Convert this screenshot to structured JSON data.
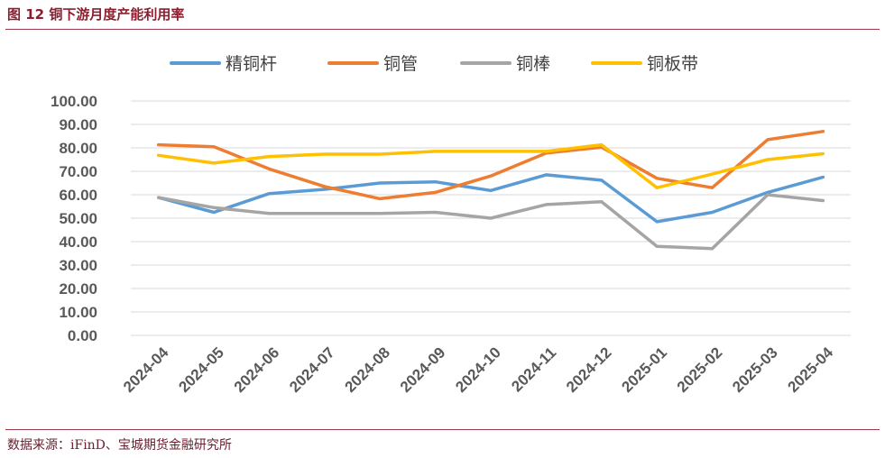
{
  "figure": {
    "title": "图 12 铜下游月度产能利用率",
    "source": "数据来源：iFinD、宝城期货金融研究所"
  },
  "chart_data": {
    "type": "line",
    "categories": [
      "2024-04",
      "2024-05",
      "2024-06",
      "2024-07",
      "2024-08",
      "2024-09",
      "2024-10",
      "2024-11",
      "2024-12",
      "2025-01",
      "2025-02",
      "2025-03",
      "2025-04"
    ],
    "ylim": [
      0,
      100
    ],
    "yticks": [
      "0.00",
      "10.00",
      "20.00",
      "30.00",
      "40.00",
      "50.00",
      "60.00",
      "70.00",
      "80.00",
      "90.00",
      "100.00"
    ],
    "grid": true,
    "legend_position": "top",
    "series": [
      {
        "name": "精铜杆",
        "color": "#5b9bd5",
        "values": [
          58.8,
          52.5,
          60.5,
          62.3,
          65.0,
          65.5,
          61.8,
          68.5,
          66.2,
          48.5,
          52.5,
          61.0,
          67.5
        ]
      },
      {
        "name": "铜管",
        "color": "#ed7d31",
        "values": [
          81.3,
          80.5,
          71.0,
          63.5,
          58.3,
          61.0,
          68.0,
          77.8,
          80.3,
          67.0,
          63.0,
          83.5,
          87.0
        ]
      },
      {
        "name": "铜棒",
        "color": "#a5a5a5",
        "values": [
          58.8,
          54.5,
          52.0,
          52.0,
          52.0,
          52.5,
          50.0,
          55.8,
          57.0,
          38.0,
          37.0,
          60.0,
          57.5
        ]
      },
      {
        "name": "铜板带",
        "color": "#ffc000",
        "values": [
          76.8,
          73.5,
          76.3,
          77.3,
          77.3,
          78.5,
          78.5,
          78.5,
          81.3,
          63.0,
          68.8,
          75.0,
          77.5
        ]
      }
    ]
  }
}
